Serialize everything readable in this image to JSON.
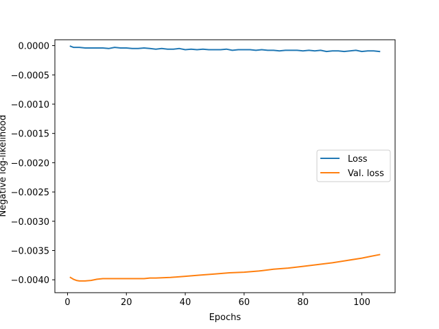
{
  "chart_data": {
    "type": "line",
    "title": "",
    "xlabel": "Epochs",
    "ylabel": "Negative log-likelihood",
    "xlim": [
      -4.3,
      111.3
    ],
    "ylim": [
      -0.00422,
      0.0001
    ],
    "xticks": [
      0,
      20,
      40,
      60,
      80,
      100
    ],
    "xtick_labels": [
      "0",
      "20",
      "40",
      "60",
      "80",
      "100"
    ],
    "yticks": [
      0.0,
      -0.0005,
      -0.001,
      -0.0015,
      -0.002,
      -0.0025,
      -0.003,
      -0.0035,
      -0.004
    ],
    "ytick_labels": [
      "0.0000",
      "−0.0005",
      "−0.0010",
      "−0.0015",
      "−0.0020",
      "−0.0025",
      "−0.0030",
      "−0.0035",
      "−0.0040"
    ],
    "grid": false,
    "legend_position": "center-right",
    "series": [
      {
        "name": "Loss",
        "color": "#1f77b4",
        "x": [
          1,
          2,
          4,
          6,
          8,
          10,
          12,
          14,
          16,
          18,
          20,
          22,
          24,
          26,
          28,
          30,
          32,
          34,
          36,
          38,
          40,
          42,
          44,
          46,
          48,
          50,
          52,
          54,
          56,
          58,
          60,
          62,
          64,
          66,
          68,
          70,
          72,
          74,
          76,
          78,
          80,
          82,
          84,
          86,
          88,
          90,
          92,
          94,
          96,
          98,
          100,
          102,
          104,
          106
        ],
        "y": [
          -1e-05,
          -3e-05,
          -3e-05,
          -4e-05,
          -4e-05,
          -4e-05,
          -4e-05,
          -5e-05,
          -3e-05,
          -4e-05,
          -4e-05,
          -5e-05,
          -5e-05,
          -4e-05,
          -5e-05,
          -6e-05,
          -5e-05,
          -6e-05,
          -6e-05,
          -5e-05,
          -7e-05,
          -6e-05,
          -7e-05,
          -6e-05,
          -7e-05,
          -7e-05,
          -7e-05,
          -6e-05,
          -8e-05,
          -7e-05,
          -7e-05,
          -7e-05,
          -8e-05,
          -7e-05,
          -8e-05,
          -8e-05,
          -9e-05,
          -8e-05,
          -8e-05,
          -8e-05,
          -9e-05,
          -8e-05,
          -9e-05,
          -8e-05,
          -0.0001,
          -9e-05,
          -9e-05,
          -0.0001,
          -9e-05,
          -8e-05,
          -0.0001,
          -9e-05,
          -9e-05,
          -0.0001
        ]
      },
      {
        "name": "Val. loss",
        "color": "#ff7f0e",
        "x": [
          1,
          2,
          3,
          4,
          6,
          8,
          10,
          12,
          14,
          16,
          18,
          20,
          22,
          24,
          26,
          28,
          30,
          35,
          40,
          45,
          50,
          55,
          60,
          65,
          70,
          75,
          80,
          85,
          90,
          95,
          100,
          103,
          106
        ],
        "y": [
          -0.00396,
          -0.00399,
          -0.00401,
          -0.00402,
          -0.00402,
          -0.00401,
          -0.00399,
          -0.00398,
          -0.00398,
          -0.00398,
          -0.00398,
          -0.00398,
          -0.00398,
          -0.00398,
          -0.00398,
          -0.00397,
          -0.00397,
          -0.00396,
          -0.00394,
          -0.00392,
          -0.0039,
          -0.00388,
          -0.00387,
          -0.00385,
          -0.00382,
          -0.0038,
          -0.00377,
          -0.00374,
          -0.00371,
          -0.00367,
          -0.00363,
          -0.0036,
          -0.00357
        ]
      }
    ]
  }
}
